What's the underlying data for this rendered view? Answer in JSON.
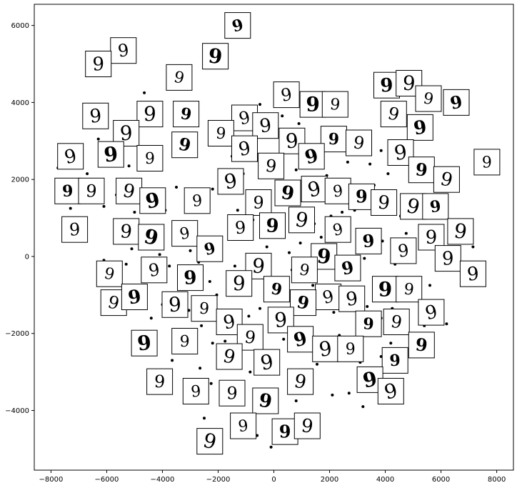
{
  "chart_data": {
    "type": "scatter",
    "title": "",
    "xlabel": "",
    "ylabel": "",
    "xlim": [
      -8600,
      8600
    ],
    "ylim": [
      -5550,
      6550
    ],
    "xticks": [
      -8000,
      -6000,
      -4000,
      -2000,
      0,
      2000,
      4000,
      6000,
      8000
    ],
    "yticks": [
      -4000,
      -2000,
      0,
      2000,
      4000,
      6000
    ],
    "xtick_labels": [
      "−8000",
      "−6000",
      "−4000",
      "−2000",
      "0",
      "2000",
      "4000",
      "6000",
      "8000"
    ],
    "ytick_labels": [
      "−4000",
      "−2000",
      "0",
      "2000",
      "4000",
      "6000"
    ],
    "grid": false,
    "legend": "none",
    "point_color": "#000000",
    "points": [
      [
        -4650,
        4250
      ],
      [
        -4950,
        3200
      ],
      [
        -5700,
        3300
      ],
      [
        -6300,
        3050
      ],
      [
        -5200,
        2350
      ],
      [
        -3100,
        2800
      ],
      [
        -7750,
        2300
      ],
      [
        -6700,
        2150
      ],
      [
        -5650,
        1600
      ],
      [
        -4250,
        1550
      ],
      [
        -3500,
        1800
      ],
      [
        -2200,
        1750
      ],
      [
        -7300,
        1250
      ],
      [
        -6100,
        1300
      ],
      [
        -5000,
        1150
      ],
      [
        -3900,
        1200
      ],
      [
        -2750,
        1500
      ],
      [
        -1600,
        1800
      ],
      [
        -1300,
        1200
      ],
      [
        -750,
        950
      ],
      [
        -2300,
        500
      ],
      [
        -1950,
        300
      ],
      [
        -4700,
        750
      ],
      [
        -4250,
        450
      ],
      [
        -5100,
        200
      ],
      [
        -4100,
        50
      ],
      [
        -3000,
        150
      ],
      [
        -6100,
        -100
      ],
      [
        -5300,
        -200
      ],
      [
        -4550,
        -250
      ],
      [
        -3750,
        -250
      ],
      [
        -2700,
        -150
      ],
      [
        -2300,
        -650
      ],
      [
        -1400,
        -250
      ],
      [
        -800,
        -100
      ],
      [
        -250,
        250
      ],
      [
        300,
        600
      ],
      [
        550,
        100
      ],
      [
        950,
        350
      ],
      [
        1450,
        850
      ],
      [
        1850,
        150
      ],
      [
        2200,
        -200
      ],
      [
        2600,
        650
      ],
      [
        2900,
        1200
      ],
      [
        3150,
        1650
      ],
      [
        3600,
        1850
      ],
      [
        3450,
        2400
      ],
      [
        3850,
        2750
      ],
      [
        4100,
        2150
      ],
      [
        4400,
        2850
      ],
      [
        2650,
        2450
      ],
      [
        2250,
        2750
      ],
      [
        1900,
        2100
      ],
      [
        1300,
        2050
      ],
      [
        800,
        2250
      ],
      [
        300,
        1950
      ],
      [
        -200,
        2350
      ],
      [
        -700,
        2650
      ],
      [
        -1100,
        2150
      ],
      [
        -1500,
        2600
      ],
      [
        -900,
        3550
      ],
      [
        -500,
        3950
      ],
      [
        -150,
        3350
      ],
      [
        300,
        3650
      ],
      [
        900,
        3450
      ],
      [
        1550,
        3850
      ],
      [
        4250,
        1600
      ],
      [
        4550,
        1050
      ],
      [
        4750,
        600
      ],
      [
        5050,
        1250
      ],
      [
        5450,
        350
      ],
      [
        5950,
        -200
      ],
      [
        6350,
        650
      ],
      [
        6800,
        950
      ],
      [
        7150,
        250
      ],
      [
        7450,
        -550
      ],
      [
        6700,
        -250
      ],
      [
        5600,
        -750
      ],
      [
        4950,
        -550
      ],
      [
        4600,
        -950
      ],
      [
        4250,
        -1350
      ],
      [
        3850,
        -1600
      ],
      [
        3350,
        -1300
      ],
      [
        2950,
        -800
      ],
      [
        2550,
        -1150
      ],
      [
        2150,
        -1450
      ],
      [
        1750,
        -1000
      ],
      [
        1400,
        -750
      ],
      [
        1050,
        -1350
      ],
      [
        700,
        -1900
      ],
      [
        350,
        -2150
      ],
      [
        -150,
        -1850
      ],
      [
        -500,
        -1350
      ],
      [
        -900,
        -1550
      ],
      [
        -1300,
        -1900
      ],
      [
        -1750,
        -2200
      ],
      [
        -2200,
        -2250
      ],
      [
        -2600,
        -1800
      ],
      [
        -3050,
        -1400
      ],
      [
        -3500,
        -1550
      ],
      [
        -4000,
        -1250
      ],
      [
        -4400,
        -1600
      ],
      [
        -4800,
        -1300
      ],
      [
        -5550,
        -1100
      ],
      [
        -5050,
        -2000
      ],
      [
        -4400,
        -2550
      ],
      [
        -3650,
        -2700
      ],
      [
        -3150,
        -2250
      ],
      [
        -2650,
        -2900
      ],
      [
        -2250,
        -3300
      ],
      [
        -1800,
        -3650
      ],
      [
        -1350,
        -3250
      ],
      [
        -850,
        -3000
      ],
      [
        -450,
        -3550
      ],
      [
        0,
        -3950
      ],
      [
        400,
        -4400
      ],
      [
        800,
        -3750
      ],
      [
        1200,
        -3250
      ],
      [
        1550,
        -2800
      ],
      [
        1950,
        -2550
      ],
      [
        2350,
        -2050
      ],
      [
        2750,
        -2300
      ],
      [
        3100,
        -2750
      ],
      [
        3500,
        -3050
      ],
      [
        3850,
        -2600
      ],
      [
        4200,
        -2250
      ],
      [
        4600,
        -2900
      ],
      [
        5000,
        -2500
      ],
      [
        5400,
        -1800
      ],
      [
        5800,
        -1350
      ],
      [
        6200,
        -1750
      ],
      [
        -1050,
        -4300
      ],
      [
        -600,
        -4650
      ],
      [
        -100,
        -4950
      ],
      [
        1200,
        -4600
      ],
      [
        2100,
        -3600
      ],
      [
        2700,
        -3550
      ],
      [
        3200,
        -3900
      ],
      [
        3600,
        -3500
      ],
      [
        -3850,
        -3450
      ],
      [
        -2950,
        -3800
      ],
      [
        -2500,
        -4200
      ],
      [
        -150,
        -700
      ],
      [
        150,
        -1000
      ],
      [
        -50,
        550
      ],
      [
        650,
        -350
      ],
      [
        1250,
        -150
      ],
      [
        1700,
        500
      ],
      [
        2450,
        1150
      ],
      [
        3900,
        400
      ],
      [
        -6000,
        -400
      ],
      [
        -5700,
        -700
      ],
      [
        -4500,
        -450
      ],
      [
        -3300,
        -500
      ],
      [
        -2050,
        -1000
      ],
      [
        -1600,
        -550
      ],
      [
        3250,
        -50
      ],
      [
        3700,
        250
      ],
      [
        4350,
        -200
      ],
      [
        5250,
        200
      ],
      [
        2050,
        1050
      ],
      [
        -500,
        1400
      ]
    ],
    "thumbnails": [
      {
        "x": -1300,
        "y": 6000,
        "digit": "9"
      },
      {
        "x": -5400,
        "y": 5350,
        "digit": "9"
      },
      {
        "x": -6300,
        "y": 5000,
        "digit": "9"
      },
      {
        "x": -2100,
        "y": 5200,
        "digit": "9"
      },
      {
        "x": -3400,
        "y": 4650,
        "digit": "9"
      },
      {
        "x": 450,
        "y": 4200,
        "digit": "9"
      },
      {
        "x": 4050,
        "y": 4450,
        "digit": "9"
      },
      {
        "x": 4850,
        "y": 4500,
        "digit": "9"
      },
      {
        "x": 5550,
        "y": 4100,
        "digit": "9"
      },
      {
        "x": 6550,
        "y": 4000,
        "digit": "9"
      },
      {
        "x": -6400,
        "y": 3650,
        "digit": "9"
      },
      {
        "x": -4450,
        "y": 3700,
        "digit": "9"
      },
      {
        "x": -3150,
        "y": 3700,
        "digit": "9"
      },
      {
        "x": -1050,
        "y": 3600,
        "digit": "9"
      },
      {
        "x": -300,
        "y": 3400,
        "digit": "9"
      },
      {
        "x": 1400,
        "y": 3950,
        "digit": "9"
      },
      {
        "x": 2200,
        "y": 3950,
        "digit": "9"
      },
      {
        "x": 4300,
        "y": 3700,
        "digit": "9"
      },
      {
        "x": 5250,
        "y": 3350,
        "digit": "9"
      },
      {
        "x": -5300,
        "y": 3200,
        "digit": "9"
      },
      {
        "x": -1900,
        "y": 3200,
        "digit": "9"
      },
      {
        "x": -3200,
        "y": 2900,
        "digit": "9"
      },
      {
        "x": -1050,
        "y": 2800,
        "digit": "9"
      },
      {
        "x": 650,
        "y": 3000,
        "digit": "9"
      },
      {
        "x": 2150,
        "y": 3050,
        "digit": "9"
      },
      {
        "x": 3050,
        "y": 2950,
        "digit": "9"
      },
      {
        "x": -7300,
        "y": 2600,
        "digit": "9"
      },
      {
        "x": -5850,
        "y": 2650,
        "digit": "9"
      },
      {
        "x": -4450,
        "y": 2550,
        "digit": "9"
      },
      {
        "x": -100,
        "y": 2350,
        "digit": "9"
      },
      {
        "x": 1350,
        "y": 2600,
        "digit": "9"
      },
      {
        "x": 4550,
        "y": 2700,
        "digit": "9"
      },
      {
        "x": 7650,
        "y": 2450,
        "digit": "9"
      },
      {
        "x": 5300,
        "y": 2250,
        "digit": "9"
      },
      {
        "x": 6200,
        "y": 2000,
        "digit": "9"
      },
      {
        "x": -1550,
        "y": 1950,
        "digit": "9"
      },
      {
        "x": -7400,
        "y": 1700,
        "digit": "9"
      },
      {
        "x": -6550,
        "y": 1700,
        "digit": "9"
      },
      {
        "x": -5200,
        "y": 1700,
        "digit": "9"
      },
      {
        "x": -4350,
        "y": 1450,
        "digit": "9"
      },
      {
        "x": -2750,
        "y": 1450,
        "digit": "9"
      },
      {
        "x": -550,
        "y": 1400,
        "digit": "9"
      },
      {
        "x": 500,
        "y": 1650,
        "digit": "9"
      },
      {
        "x": 1450,
        "y": 1750,
        "digit": "9"
      },
      {
        "x": 2300,
        "y": 1700,
        "digit": "9"
      },
      {
        "x": 3150,
        "y": 1550,
        "digit": "9"
      },
      {
        "x": 3950,
        "y": 1400,
        "digit": "9"
      },
      {
        "x": 5000,
        "y": 1300,
        "digit": "9"
      },
      {
        "x": 5800,
        "y": 1300,
        "digit": "9"
      },
      {
        "x": -7150,
        "y": 700,
        "digit": "9"
      },
      {
        "x": -5300,
        "y": 650,
        "digit": "9"
      },
      {
        "x": -4400,
        "y": 500,
        "digit": "9"
      },
      {
        "x": -3200,
        "y": 600,
        "digit": "9"
      },
      {
        "x": -1200,
        "y": 750,
        "digit": "9"
      },
      {
        "x": -50,
        "y": 800,
        "digit": "9"
      },
      {
        "x": 1000,
        "y": 950,
        "digit": "9"
      },
      {
        "x": 2300,
        "y": 700,
        "digit": "9"
      },
      {
        "x": 3400,
        "y": 400,
        "digit": "9"
      },
      {
        "x": 5650,
        "y": 500,
        "digit": "9"
      },
      {
        "x": 6700,
        "y": 650,
        "digit": "9"
      },
      {
        "x": -2300,
        "y": 200,
        "digit": "9"
      },
      {
        "x": 4650,
        "y": 150,
        "digit": "9"
      },
      {
        "x": 6250,
        "y": -50,
        "digit": "9"
      },
      {
        "x": 1800,
        "y": 0,
        "digit": "9"
      },
      {
        "x": -5900,
        "y": -450,
        "digit": "9"
      },
      {
        "x": -4300,
        "y": -350,
        "digit": "9"
      },
      {
        "x": -3000,
        "y": -550,
        "digit": "9"
      },
      {
        "x": -550,
        "y": -250,
        "digit": "9"
      },
      {
        "x": 1100,
        "y": -350,
        "digit": "9"
      },
      {
        "x": 2650,
        "y": -300,
        "digit": "9"
      },
      {
        "x": 7150,
        "y": -450,
        "digit": "9"
      },
      {
        "x": -1250,
        "y": -700,
        "digit": "9"
      },
      {
        "x": 100,
        "y": -850,
        "digit": "9"
      },
      {
        "x": 1950,
        "y": -1050,
        "digit": "9"
      },
      {
        "x": 2800,
        "y": -1100,
        "digit": "9"
      },
      {
        "x": 4000,
        "y": -850,
        "digit": "9"
      },
      {
        "x": 4850,
        "y": -850,
        "digit": "9"
      },
      {
        "x": -5750,
        "y": -1200,
        "digit": "9"
      },
      {
        "x": -5000,
        "y": -1050,
        "digit": "9"
      },
      {
        "x": -3550,
        "y": -1250,
        "digit": "9"
      },
      {
        "x": -2500,
        "y": -1350,
        "digit": "9"
      },
      {
        "x": 1050,
        "y": -1200,
        "digit": "9"
      },
      {
        "x": -1600,
        "y": -1700,
        "digit": "9"
      },
      {
        "x": 250,
        "y": -1650,
        "digit": "9"
      },
      {
        "x": 3400,
        "y": -1750,
        "digit": "9"
      },
      {
        "x": 4400,
        "y": -1700,
        "digit": "9"
      },
      {
        "x": 5650,
        "y": -1450,
        "digit": "9"
      },
      {
        "x": -4650,
        "y": -2250,
        "digit": "9"
      },
      {
        "x": -3200,
        "y": -2200,
        "digit": "9"
      },
      {
        "x": -850,
        "y": -2100,
        "digit": "9"
      },
      {
        "x": 950,
        "y": -2150,
        "digit": "9"
      },
      {
        "x": 1850,
        "y": -2400,
        "digit": "9"
      },
      {
        "x": 2750,
        "y": -2400,
        "digit": "9"
      },
      {
        "x": 5300,
        "y": -2300,
        "digit": "9"
      },
      {
        "x": -1600,
        "y": -2600,
        "digit": "9"
      },
      {
        "x": -250,
        "y": -2750,
        "digit": "9"
      },
      {
        "x": 4350,
        "y": -2700,
        "digit": "9"
      },
      {
        "x": -4100,
        "y": -3250,
        "digit": "9"
      },
      {
        "x": 950,
        "y": -3250,
        "digit": "9"
      },
      {
        "x": 3450,
        "y": -3200,
        "digit": "9"
      },
      {
        "x": -2800,
        "y": -3500,
        "digit": "9"
      },
      {
        "x": -1500,
        "y": -3550,
        "digit": "9"
      },
      {
        "x": -300,
        "y": -3750,
        "digit": "9"
      },
      {
        "x": 4200,
        "y": -3500,
        "digit": "9"
      },
      {
        "x": -1100,
        "y": -4400,
        "digit": "9"
      },
      {
        "x": 400,
        "y": -4550,
        "digit": "9"
      },
      {
        "x": 1200,
        "y": -4400,
        "digit": "9"
      },
      {
        "x": -2300,
        "y": -4800,
        "digit": "9"
      }
    ]
  }
}
